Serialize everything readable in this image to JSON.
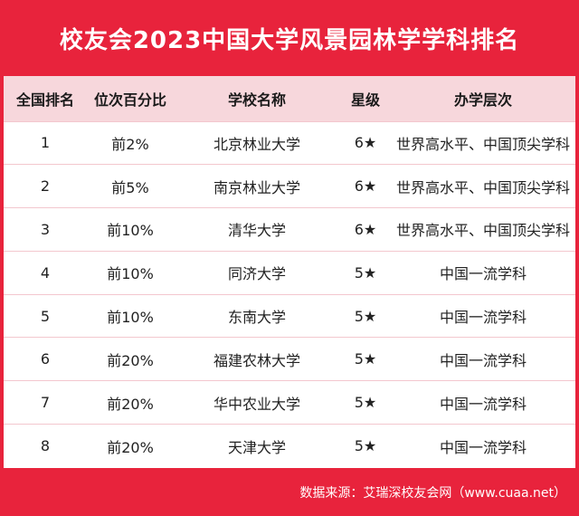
{
  "title": "校友会2023中国大学风景园林学学科排名",
  "table": {
    "headers": [
      "全国排名",
      "位次百分比",
      "学校名称",
      "星级",
      "办学层次"
    ],
    "rows": [
      {
        "rank": "1",
        "pct": "前2%",
        "school": "北京林业大学",
        "star": "6★",
        "level": "世界高水平、中国顶尖学科"
      },
      {
        "rank": "2",
        "pct": "前5%",
        "school": "南京林业大学",
        "star": "6★",
        "level": "世界高水平、中国顶尖学科"
      },
      {
        "rank": "3",
        "pct": "前10%",
        "school": "清华大学",
        "star": "6★",
        "level": "世界高水平、中国顶尖学科"
      },
      {
        "rank": "4",
        "pct": "前10%",
        "school": "同济大学",
        "star": "5★",
        "level": "中国一流学科"
      },
      {
        "rank": "5",
        "pct": "前10%",
        "school": "东南大学",
        "star": "5★",
        "level": "中国一流学科"
      },
      {
        "rank": "6",
        "pct": "前20%",
        "school": "福建农林大学",
        "star": "5★",
        "level": "中国一流学科"
      },
      {
        "rank": "7",
        "pct": "前20%",
        "school": "华中农业大学",
        "star": "5★",
        "level": "中国一流学科"
      },
      {
        "rank": "8",
        "pct": "前20%",
        "school": "天津大学",
        "star": "5★",
        "level": "中国一流学科"
      }
    ]
  },
  "footer": "数据来源：艾瑞深校友会网（www.cuaa.net）",
  "colors": {
    "background": "#e8233c",
    "header_row": "#f7d7dc",
    "table": "#ffffff"
  }
}
